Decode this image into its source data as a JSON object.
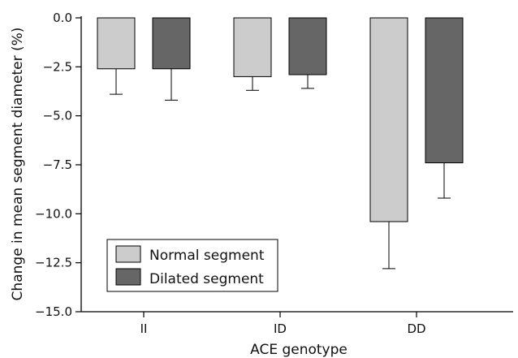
{
  "chart_data": {
    "type": "bar",
    "categories": [
      "II",
      "ID",
      "DD"
    ],
    "series": [
      {
        "name": "Normal segment",
        "color": "#cccccc",
        "values": [
          -2.6,
          -3.0,
          -10.4
        ],
        "errors": [
          1.3,
          0.7,
          2.4
        ]
      },
      {
        "name": "Dilated segment",
        "color": "#666666",
        "values": [
          -2.6,
          -2.9,
          -7.4
        ],
        "errors": [
          1.6,
          0.7,
          1.8
        ]
      }
    ],
    "xlabel": "ACE genotype",
    "ylabel": "Change in mean segment diameter (%)",
    "ylim": [
      -15.0,
      0.0
    ],
    "yticks": [
      0.0,
      -2.5,
      -5.0,
      -7.5,
      -10.0,
      -12.5,
      -15.0
    ],
    "ytick_labels": [
      "0.0",
      "−2.5",
      "−5.0",
      "−7.5",
      "−10.0",
      "−12.5",
      "−15.0"
    ],
    "grid": false,
    "legend": "bottom-left"
  }
}
